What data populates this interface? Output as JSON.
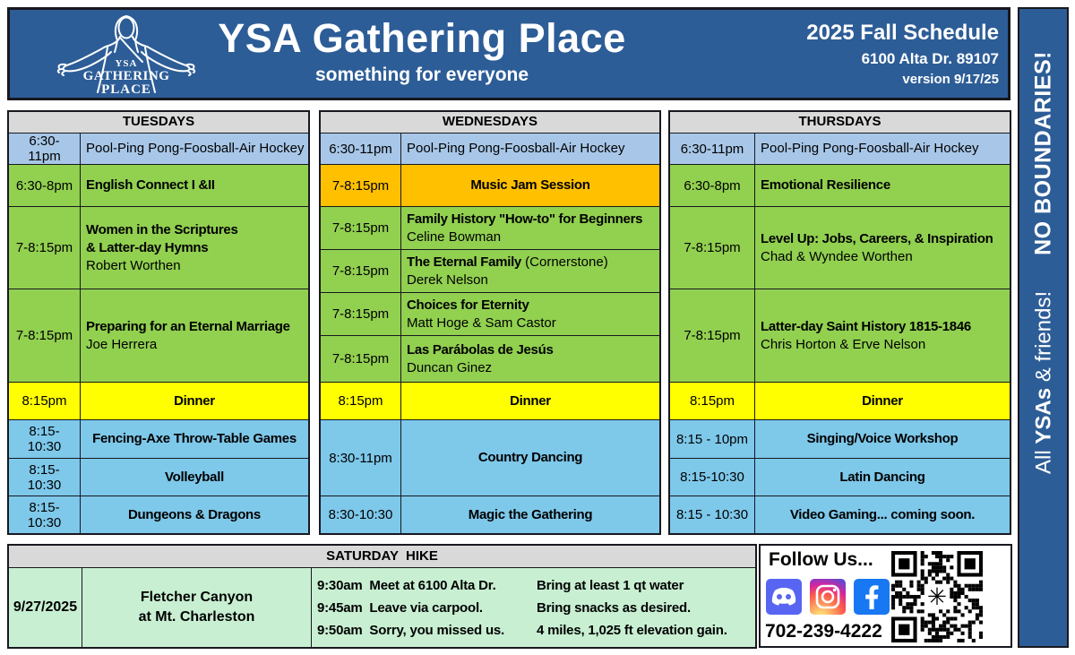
{
  "banner": {
    "title": "YSA Gathering Place",
    "subtitle": "something for everyone",
    "schedule": "2025 Fall Schedule",
    "address": "6100 Alta Dr. 89107",
    "version": "version 9/17/25",
    "logo": {
      "line1": "YSA",
      "line2": "GATHERING",
      "line3": "PLACE"
    }
  },
  "sidebar": {
    "bottom_pre": "All ",
    "bottom_bold": "YSAs",
    "bottom_post": " & friends!",
    "top_text": "NO BOUNDARIES!"
  },
  "days": [
    {
      "name": "TUESDAYS",
      "rows": [
        {
          "time": "6:30-\n11pm",
          "title": "Pool-Ping Pong-Foosball-Air Hockey"
        },
        {
          "time": "6:30-8pm",
          "title": "English Connect I &II"
        },
        {
          "time": "7-8:15pm",
          "title": "Women in the Scriptures\n& Latter-day Hymns",
          "presenter": "Robert Worthen"
        },
        {
          "time": "7-8:15pm",
          "title": "Preparing for an Eternal Marriage",
          "presenter": "Joe Herrera"
        },
        {
          "time": "8:15pm",
          "title": "Dinner"
        },
        {
          "time": "8:15-\n10:30",
          "title": "Fencing-Axe Throw-Table Games"
        },
        {
          "time": "8:15-\n10:30",
          "title": "Volleyball"
        },
        {
          "time": "8:15-\n10:30",
          "title": "Dungeons & Dragons"
        }
      ]
    },
    {
      "name": "WEDNESDAYS",
      "rows": [
        {
          "time": "6:30-11pm",
          "title": "Pool-Ping Pong-Foosball-Air Hockey"
        },
        {
          "time": "7-8:15pm",
          "title": "Music Jam Session"
        },
        {
          "time": "7-8:15pm",
          "title": "Family History \"How-to\" for Beginners",
          "presenter": "Celine Bowman"
        },
        {
          "time": "7-8:15pm",
          "title": "The Eternal Family",
          "suffix": " (Cornerstone)",
          "presenter": "Derek Nelson"
        },
        {
          "time": "7-8:15pm",
          "title": "Choices for Eternity",
          "presenter": "Matt Hoge & Sam Castor"
        },
        {
          "time": "7-8:15pm",
          "title": "Las Parábolas de Jesús",
          "presenter": "Duncan Ginez"
        },
        {
          "time": "8:15pm",
          "title": "Dinner"
        },
        {
          "time": "8:30-11pm",
          "title": "Country Dancing"
        },
        {
          "time": "8:30-10:30",
          "title": "Magic the Gathering"
        }
      ]
    },
    {
      "name": "THURSDAYS",
      "rows": [
        {
          "time": "6:30-11pm",
          "title": "Pool-Ping Pong-Foosball-Air Hockey"
        },
        {
          "time": "6:30-8pm",
          "title": "Emotional Resilience"
        },
        {
          "time": "7-8:15pm",
          "title": "Level Up: Jobs, Careers, & Inspiration",
          "presenter": "Chad & Wyndee  Worthen"
        },
        {
          "time": "7-8:15pm",
          "title": "Latter-day Saint History 1815-1846",
          "presenter": "Chris Horton & Erve Nelson"
        },
        {
          "time": "8:15pm",
          "title": "Dinner"
        },
        {
          "time": "8:15 - 10pm",
          "title": "Singing/Voice  Workshop"
        },
        {
          "time": "8:15-10:30",
          "title": "Latin Dancing"
        },
        {
          "time": "8:15 - 10:30",
          "title": "Video Gaming...  coming soon."
        }
      ]
    }
  ],
  "saturday": {
    "header": "SATURDAY  HIKE",
    "date": "9/27/2025",
    "location": "Fletcher Canyon\nat Mt. Charleston",
    "details_left": [
      "9:30am  Meet at 6100 Alta Dr.",
      "9:45am  Leave via carpool.",
      "9:50am  Sorry, you missed us."
    ],
    "details_right": [
      "Bring at least 1 qt water",
      "Bring snacks as desired.",
      "4 miles, 1,025 ft elevation gain."
    ]
  },
  "follow": {
    "title": "Follow Us...",
    "phone": "702-239-4222",
    "icons": [
      "discord",
      "instagram",
      "facebook"
    ]
  },
  "colors": {
    "banner_blue": "#2d5d97",
    "header_gray": "#d9d9d9",
    "pool_blue": "#a8c7e8",
    "class_green": "#92d050",
    "jam_orange": "#ffc000",
    "dinner_yellow": "#ffff00",
    "evening_blue": "#7ec8ea",
    "hike_green": "#c8efd2",
    "discord_purple": "#5865f2",
    "facebook_blue": "#1877f2"
  }
}
